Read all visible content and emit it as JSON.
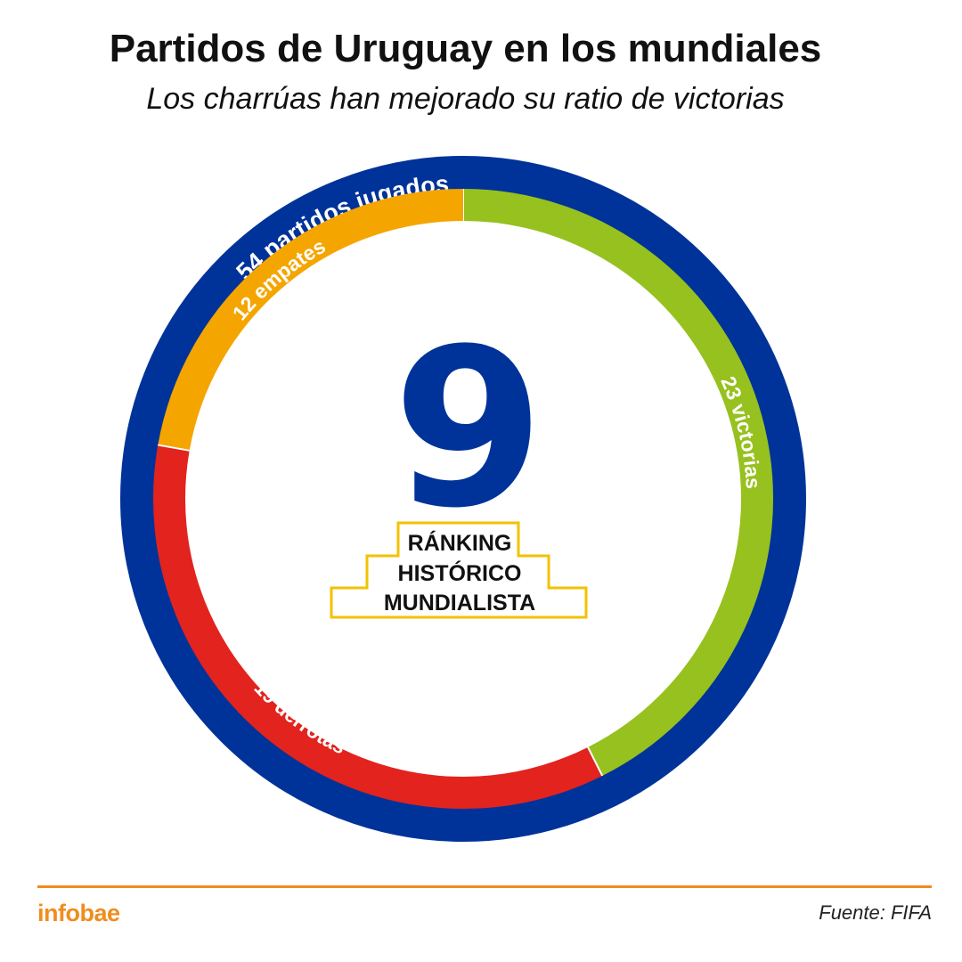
{
  "header": {
    "title": "Partidos de Uruguay en los mundiales",
    "subtitle": "Los charrúas han mejorado su ratio de victorias"
  },
  "chart_data": {
    "type": "pie",
    "total": 54,
    "total_label": "54 partidos jugados",
    "segments": [
      {
        "name": "victorias",
        "value": 23,
        "label": "23 victorias",
        "color": "#96c11f"
      },
      {
        "name": "derrotas",
        "value": 19,
        "label": "19 derrotas",
        "color": "#e2231e"
      },
      {
        "name": "empates",
        "value": 12,
        "label": "12 empates",
        "color": "#f5a500"
      }
    ],
    "ring_color": "#003399",
    "ranking": {
      "value": "9",
      "lines": [
        "RÁNKING",
        "HISTÓRICO",
        "MUNDIALISTA"
      ],
      "value_color": "#003399",
      "box_color": "#f2c200"
    }
  },
  "footer": {
    "brand": "infobae",
    "source": "Fuente: FIFA"
  },
  "colors": {
    "accent": "#f08c1e"
  }
}
